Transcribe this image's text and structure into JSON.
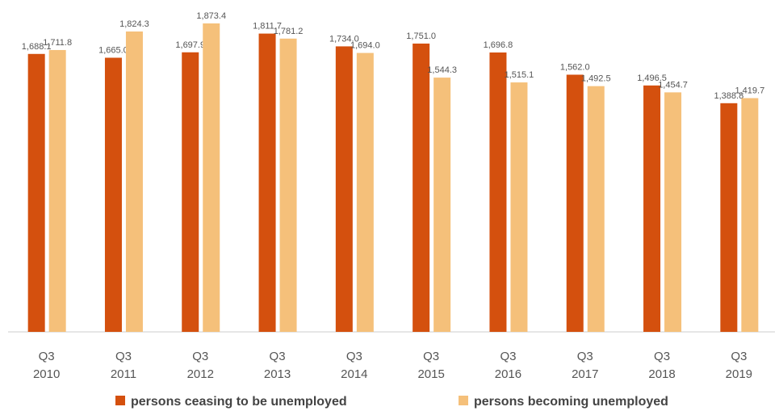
{
  "chart_data": {
    "type": "bar",
    "categories": [
      "Q3 2010",
      "Q3 2011",
      "Q3 2012",
      "Q3 2013",
      "Q3 2014",
      "Q3 2015",
      "Q3 2016",
      "Q3 2017",
      "Q3 2018",
      "Q3 2019"
    ],
    "series": [
      {
        "name": "persons ceasing to be unemployed",
        "color": "#d4500e",
        "values": [
          1688.1,
          1665.0,
          1697.9,
          1811.7,
          1734.0,
          1751.0,
          1696.8,
          1562.0,
          1496.5,
          1388.8
        ],
        "value_labels": [
          "1,688.1",
          "1,665.0",
          "1,697.9",
          "1,811.7",
          "1,734.0",
          "1,751.0",
          "1,696.8",
          "1,562.0",
          "1,496.5",
          "1,388.8"
        ]
      },
      {
        "name": "persons becoming unemployed",
        "color": "#f5c07a",
        "values": [
          1711.8,
          1824.3,
          1873.4,
          1781.2,
          1694.0,
          1544.3,
          1515.1,
          1492.5,
          1454.7,
          1419.7
        ],
        "value_labels": [
          "1,711.8",
          "1,824.3",
          "1,873.4",
          "1,781.2",
          "1,694.0",
          "1,544.3",
          "1,515.1",
          "1,492.5",
          "1,454.7",
          "1,419.7"
        ]
      }
    ],
    "legend": "bottom"
  }
}
